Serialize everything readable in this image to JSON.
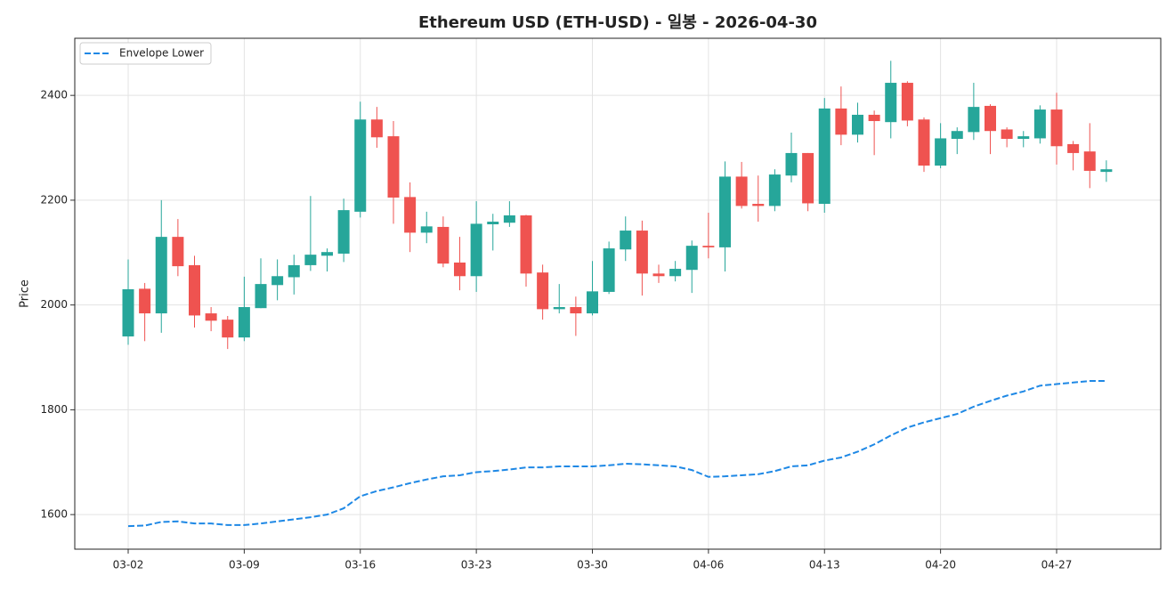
{
  "chart_data": {
    "type": "candlestick",
    "title": "Ethereum USD (ETH-USD) - 일봉 - 2026-04-30",
    "y_label": "Price",
    "x": [
      "03-02",
      "03-03",
      "03-04",
      "03-05",
      "03-06",
      "03-07",
      "03-08",
      "03-09",
      "03-10",
      "03-11",
      "03-12",
      "03-13",
      "03-14",
      "03-15",
      "03-16",
      "03-17",
      "03-18",
      "03-19",
      "03-20",
      "03-21",
      "03-22",
      "03-23",
      "03-24",
      "03-25",
      "03-26",
      "03-27",
      "03-28",
      "03-29",
      "03-30",
      "03-31",
      "04-01",
      "04-02",
      "04-03",
      "04-04",
      "04-05",
      "04-06",
      "04-07",
      "04-08",
      "04-09",
      "04-10",
      "04-11",
      "04-12",
      "04-13",
      "04-14",
      "04-15",
      "04-16",
      "04-17",
      "04-18",
      "04-19",
      "04-20",
      "04-21",
      "04-22",
      "04-23",
      "04-24",
      "04-25",
      "04-26",
      "04-27",
      "04-28",
      "04-29",
      "04-30"
    ],
    "open": [
      1940,
      2031,
      1984,
      2130,
      2076,
      1984,
      1972,
      1938,
      1994,
      2038,
      2053,
      2076,
      2094,
      2098,
      2178,
      2354,
      2322,
      2206,
      2138,
      2149,
      2081,
      2055,
      2154,
      2157,
      2171,
      2062,
      1992,
      1996,
      1984,
      2025,
      2106,
      2142,
      2060,
      2055,
      2067,
      2113,
      2110,
      2245,
      2193,
      2189,
      2247,
      2290,
      2193,
      2375,
      2325,
      2363,
      2349,
      2424,
      2354,
      2266,
      2317,
      2330,
      2380,
      2335,
      2317,
      2318,
      2373,
      2307,
      2293,
      2254
    ],
    "high": [
      2087,
      2042,
      2200,
      2164,
      2094,
      1996,
      1979,
      2054,
      2089,
      2087,
      2096,
      2208,
      2108,
      2203,
      2388,
      2378,
      2351,
      2234,
      2178,
      2169,
      2130,
      2198,
      2174,
      2198,
      2172,
      2077,
      2040,
      2016,
      2084,
      2121,
      2169,
      2161,
      2077,
      2084,
      2123,
      2176,
      2274,
      2273,
      2247,
      2259,
      2329,
      2290,
      2395,
      2417,
      2386,
      2371,
      2466,
      2427,
      2358,
      2347,
      2339,
      2424,
      2383,
      2339,
      2332,
      2381,
      2405,
      2313,
      2347,
      2276
    ],
    "low": [
      1924,
      1931,
      1947,
      2055,
      1957,
      1950,
      1916,
      1931,
      1994,
      2009,
      2020,
      2065,
      2064,
      2082,
      2167,
      2300,
      2155,
      2101,
      2118,
      2072,
      2028,
      2025,
      2104,
      2149,
      2035,
      1972,
      1984,
      1941,
      1980,
      2021,
      2084,
      2018,
      2042,
      2045,
      2023,
      2089,
      2064,
      2184,
      2159,
      2179,
      2234,
      2179,
      2176,
      2305,
      2310,
      2286,
      2318,
      2341,
      2254,
      2261,
      2288,
      2315,
      2288,
      2301,
      2301,
      2308,
      2268,
      2257,
      2223,
      2235
    ],
    "close": [
      2030,
      1984,
      2130,
      2074,
      1980,
      1970,
      1938,
      1996,
      2040,
      2055,
      2076,
      2096,
      2101,
      2181,
      2354,
      2320,
      2205,
      2138,
      2150,
      2079,
      2055,
      2155,
      2159,
      2171,
      2060,
      1992,
      1996,
      1984,
      2026,
      2108,
      2142,
      2060,
      2055,
      2069,
      2113,
      2110,
      2245,
      2189,
      2189,
      2249,
      2290,
      2194,
      2375,
      2325,
      2363,
      2351,
      2424,
      2352,
      2266,
      2318,
      2332,
      2378,
      2332,
      2317,
      2322,
      2373,
      2303,
      2290,
      2256,
      2259
    ],
    "up_color": "#26a69a",
    "down_color": "#ef5350",
    "series": [
      {
        "name": "Envelope Lower",
        "color": "#1e88e5",
        "style": "dashed",
        "values": [
          1578,
          1579,
          1586,
          1587,
          1583,
          1583,
          1580,
          1580,
          1583,
          1587,
          1591,
          1595,
          1600,
          1612,
          1635,
          1645,
          1652,
          1660,
          1667,
          1673,
          1675,
          1681,
          1683,
          1686,
          1690,
          1690,
          1692,
          1692,
          1692,
          1694,
          1697,
          1696,
          1694,
          1692,
          1685,
          1672,
          1673,
          1675,
          1677,
          1683,
          1692,
          1694,
          1703,
          1709,
          1720,
          1734,
          1751,
          1766,
          1776,
          1784,
          1792,
          1806,
          1817,
          1827,
          1835,
          1846,
          1849,
          1852,
          1855,
          1855
        ]
      }
    ],
    "ylim": [
      1534,
      2509
    ],
    "yticks": [
      1600,
      1800,
      2000,
      2200,
      2400
    ],
    "xticks": [
      "03-02",
      "03-09",
      "03-16",
      "03-23",
      "03-30",
      "04-06",
      "04-13",
      "04-20",
      "04-27"
    ],
    "grid": true,
    "legend": "upper left"
  }
}
